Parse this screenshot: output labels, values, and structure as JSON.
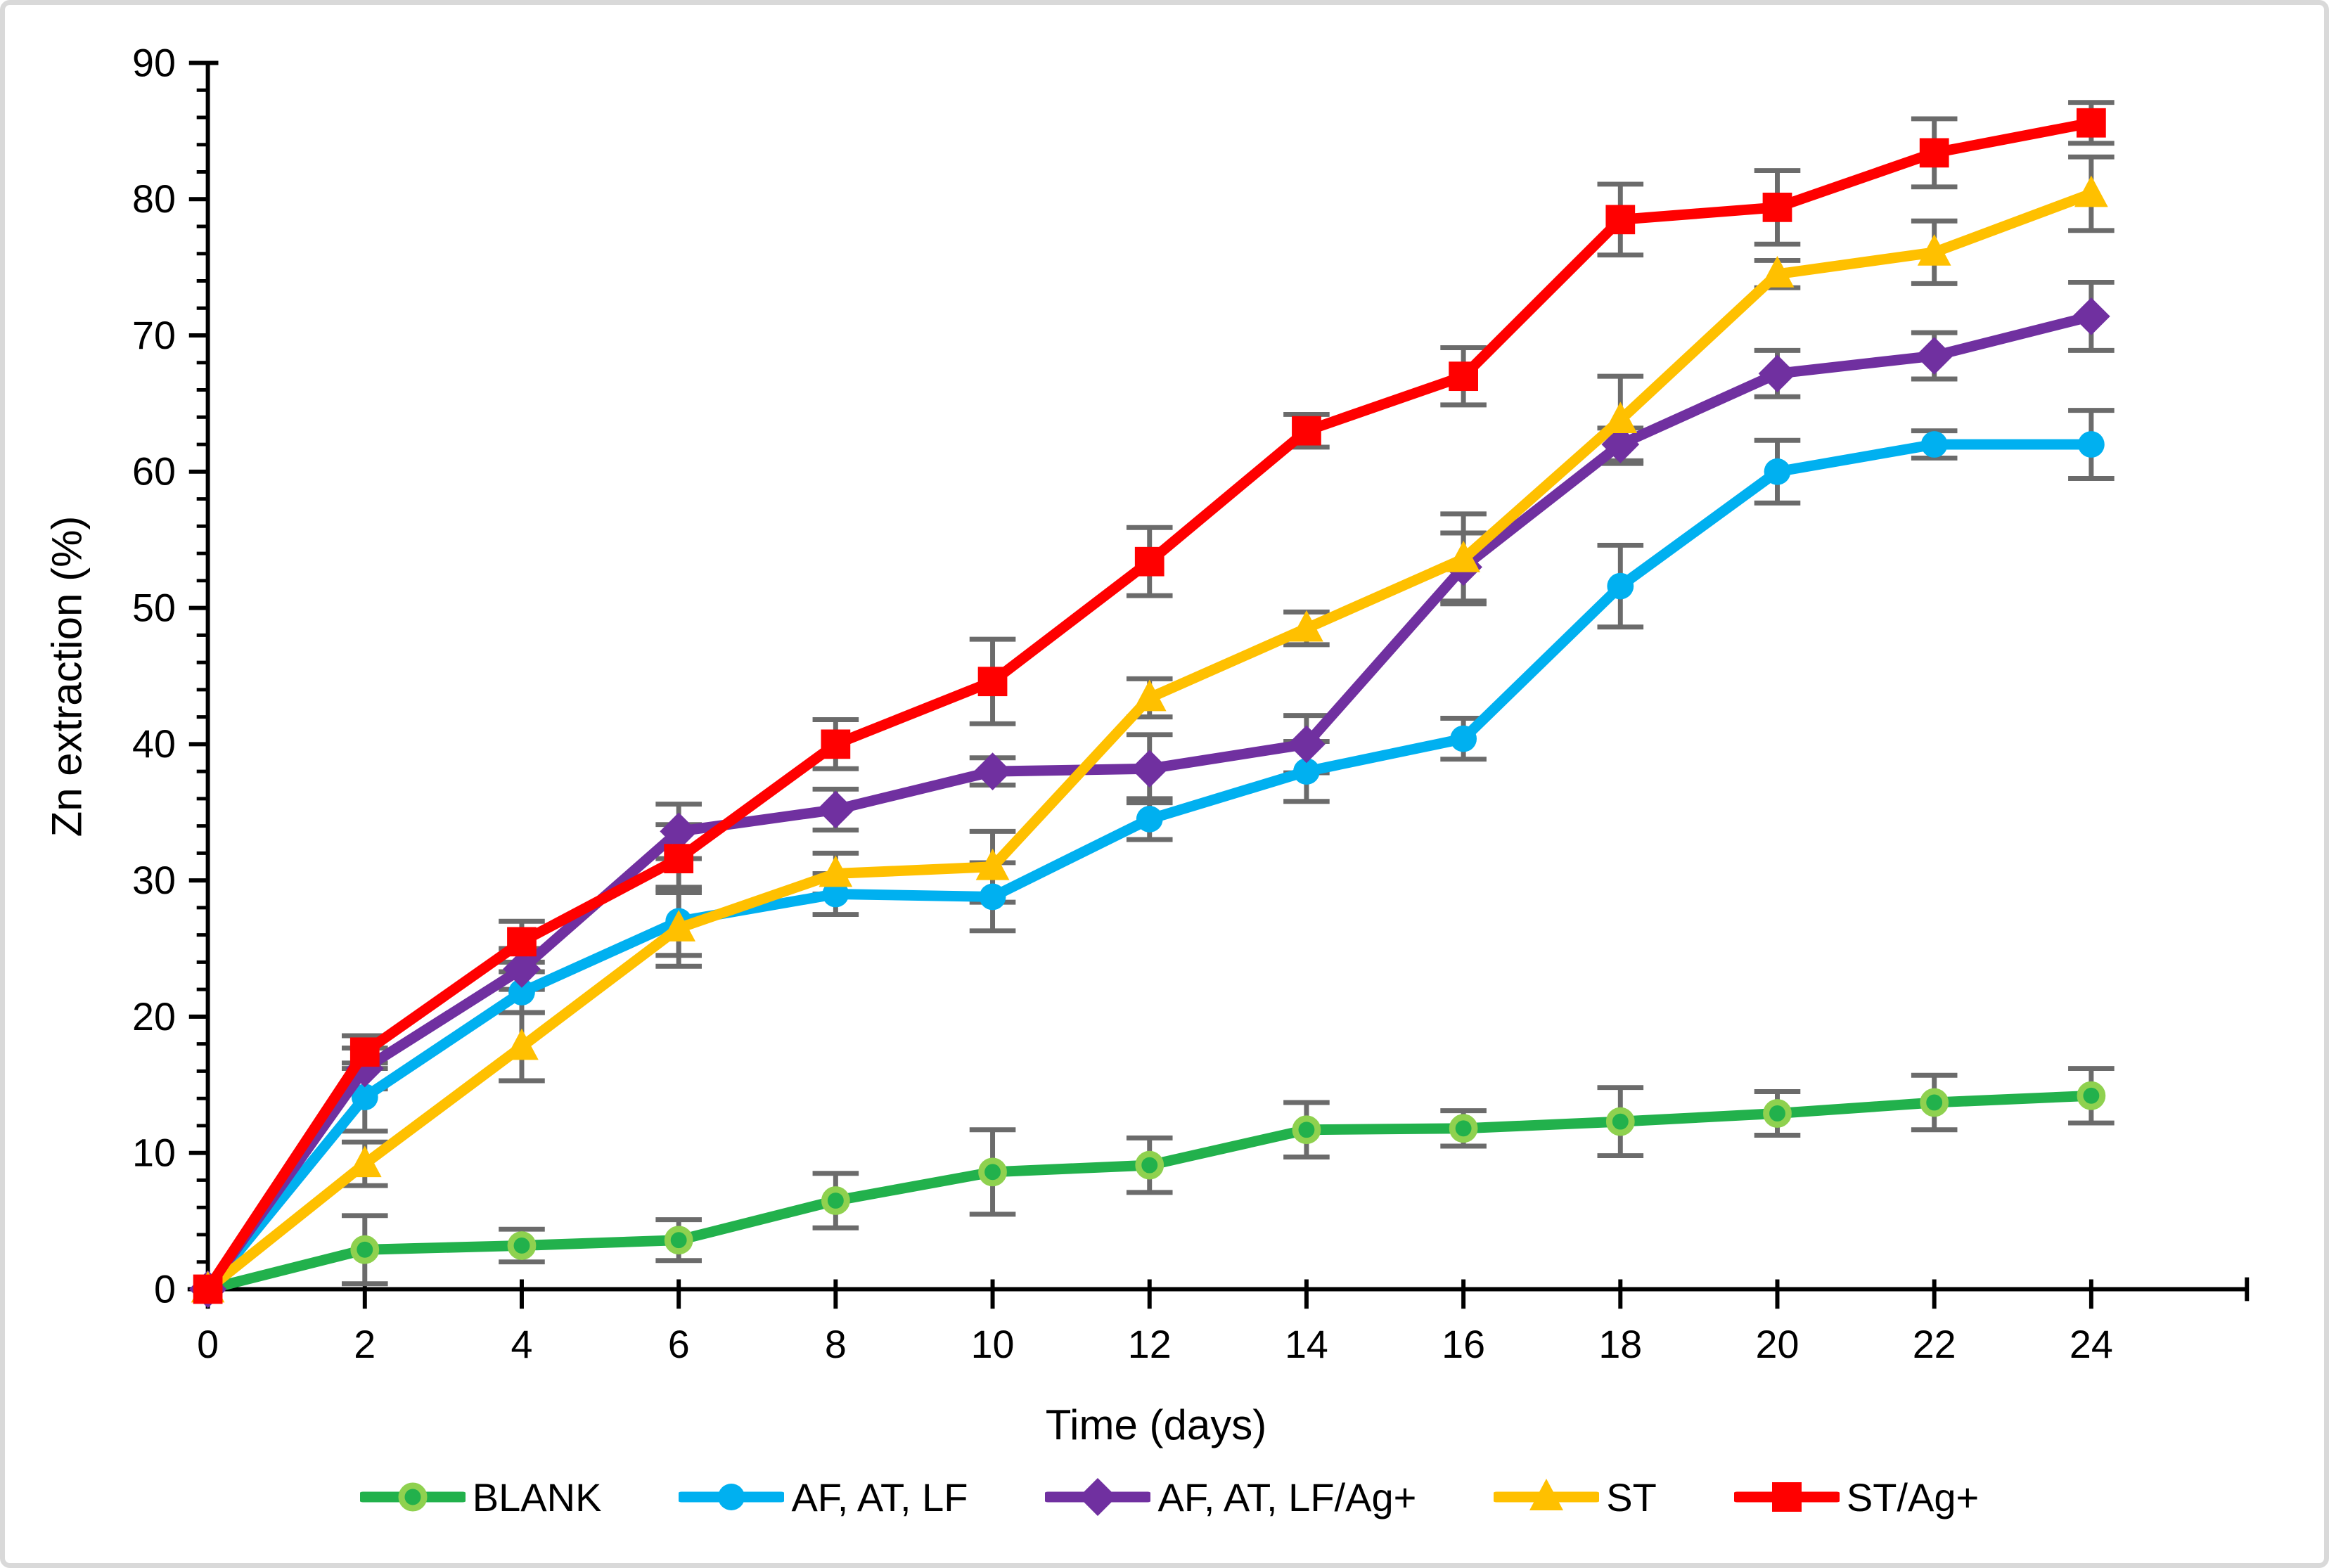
{
  "chart_data": {
    "type": "line",
    "title": "",
    "xlabel": "Time (days)",
    "ylabel": "Zn extraction (%)",
    "x": [
      0,
      2,
      4,
      6,
      8,
      10,
      12,
      14,
      16,
      18,
      20,
      22,
      24
    ],
    "x_ticks": [
      0,
      2,
      4,
      6,
      8,
      10,
      12,
      14,
      16,
      18,
      20,
      22,
      24
    ],
    "y_ticks": [
      0,
      10,
      20,
      30,
      40,
      50,
      60,
      70,
      80,
      90
    ],
    "y_minor_step": 2,
    "xlim": [
      0,
      25.5
    ],
    "ylim": [
      0,
      90
    ],
    "grid": false,
    "legend_position": "bottom",
    "axis_color": "#000000",
    "error_bar_color": "#6B6B6B",
    "series": [
      {
        "name": "BLANK",
        "color": "#22B14C",
        "marker": "circle",
        "marker_stroke": "#8FD14F",
        "values": [
          0,
          2.9,
          3.2,
          3.6,
          6.5,
          8.6,
          9.1,
          11.7,
          11.8,
          12.3,
          12.9,
          13.7,
          14.2
        ],
        "errors": [
          0,
          2.5,
          1.2,
          1.5,
          2.0,
          3.1,
          2.0,
          2.0,
          1.3,
          2.5,
          1.6,
          2.0,
          2.0
        ]
      },
      {
        "name": "AF, AT, LF",
        "color": "#00B0F0",
        "marker": "circle",
        "marker_stroke": "",
        "values": [
          0,
          14.1,
          21.8,
          27.0,
          29.0,
          28.8,
          34.5,
          38.0,
          40.4,
          51.6,
          60.0,
          62.0,
          62.0
        ],
        "errors": [
          0,
          2.5,
          1.5,
          2.5,
          1.5,
          2.5,
          1.5,
          2.2,
          1.5,
          3.0,
          2.3,
          1.0,
          2.5
        ]
      },
      {
        "name": "AF, AT, LF/Ag+",
        "color": "#7030A0",
        "marker": "diamond",
        "marker_stroke": "",
        "values": [
          0,
          16.2,
          23.5,
          33.6,
          35.2,
          38.0,
          38.2,
          40.0,
          53.0,
          62.0,
          67.2,
          68.5,
          71.4
        ],
        "errors": [
          0,
          1.5,
          1.5,
          2.0,
          1.5,
          1.0,
          2.5,
          2.1,
          2.5,
          1.2,
          1.7,
          1.7,
          2.5
        ]
      },
      {
        "name": "ST",
        "color": "#FFC000",
        "marker": "triangle",
        "marker_stroke": "",
        "values": [
          0,
          9.2,
          17.8,
          26.5,
          30.5,
          31.0,
          43.4,
          48.5,
          53.6,
          63.8,
          74.5,
          76.1,
          80.4
        ],
        "errors": [
          0,
          1.6,
          2.5,
          2.8,
          1.5,
          2.6,
          1.4,
          1.2,
          3.3,
          3.2,
          1.0,
          2.3,
          2.7
        ]
      },
      {
        "name": "ST/Ag+",
        "color": "#FF0000",
        "marker": "square",
        "marker_stroke": "",
        "values": [
          0,
          17.4,
          25.5,
          31.6,
          40.0,
          44.6,
          53.4,
          63.0,
          67.0,
          78.5,
          79.4,
          83.4,
          85.6
        ],
        "errors": [
          0,
          1.2,
          1.5,
          2.5,
          1.8,
          3.1,
          2.5,
          1.2,
          2.1,
          2.6,
          2.7,
          2.5,
          1.5
        ]
      }
    ]
  }
}
